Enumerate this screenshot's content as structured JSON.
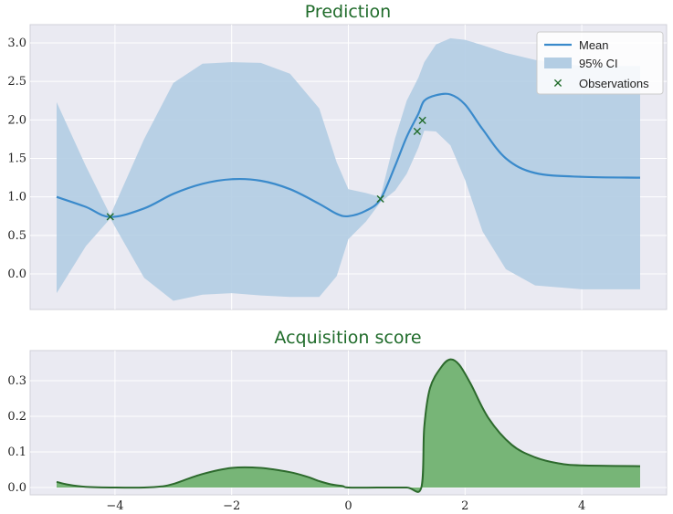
{
  "colors": {
    "mean_line": "#3a8acb",
    "ci_fill": "#b3cde3",
    "observation_marker": "#1f6b2a",
    "acquisition_fill": "#77b577",
    "acquisition_line": "#2d6a2d",
    "title": "#1f6b2a",
    "plot_background": "#eaeaf2"
  },
  "chart_data": [
    {
      "type": "line",
      "title": "Prediction",
      "xlim": [
        -5,
        5
      ],
      "ylim": [
        -0.45,
        3.2
      ],
      "grid": true,
      "legend": {
        "placement": "top-right",
        "entries": [
          "Mean",
          "95% CI",
          "Observations"
        ]
      },
      "x_ticks": [
        -4,
        -2,
        0,
        2,
        4
      ],
      "y_ticks": [
        0.0,
        0.5,
        1.0,
        1.5,
        2.0,
        2.5,
        3.0
      ],
      "y_tick_labels": [
        "0.0",
        "0.5",
        "1.0",
        "1.5",
        "2.0",
        "2.5",
        "3.0"
      ],
      "series": [
        {
          "name": "Mean",
          "x": [
            -5,
            -4.5,
            -4.08,
            -3.5,
            -3,
            -2.5,
            -2,
            -1.5,
            -1,
            -0.5,
            -0.2,
            0,
            0.3,
            0.55,
            0.8,
            1.0,
            1.2,
            1.3,
            1.5,
            1.75,
            2.0,
            2.3,
            2.7,
            3.2,
            4,
            5
          ],
          "values": [
            1.0,
            0.87,
            0.74,
            0.85,
            1.04,
            1.17,
            1.23,
            1.21,
            1.1,
            0.91,
            0.78,
            0.75,
            0.82,
            0.97,
            1.4,
            1.78,
            2.08,
            2.25,
            2.32,
            2.33,
            2.2,
            1.88,
            1.5,
            1.31,
            1.26,
            1.25
          ]
        },
        {
          "name": "95% CI",
          "x": [
            -5,
            -4.5,
            -4.08,
            -3.5,
            -3,
            -2.5,
            -2,
            -1.5,
            -1,
            -0.5,
            -0.2,
            0,
            0.3,
            0.55,
            0.8,
            1.0,
            1.2,
            1.3,
            1.5,
            1.75,
            2.0,
            2.3,
            2.7,
            3.2,
            4,
            5
          ],
          "upper": [
            2.23,
            1.4,
            0.76,
            1.75,
            2.48,
            2.73,
            2.75,
            2.74,
            2.6,
            2.15,
            1.45,
            1.1,
            1.05,
            1.0,
            1.76,
            2.25,
            2.55,
            2.75,
            2.98,
            3.06,
            3.04,
            2.97,
            2.87,
            2.78,
            2.7,
            2.7
          ],
          "lower": [
            -0.25,
            0.36,
            0.72,
            -0.05,
            -0.35,
            -0.27,
            -0.25,
            -0.28,
            -0.3,
            -0.3,
            -0.03,
            0.45,
            0.68,
            0.93,
            1.08,
            1.3,
            1.64,
            1.86,
            1.85,
            1.67,
            1.22,
            0.55,
            0.06,
            -0.15,
            -0.2,
            -0.2
          ]
        },
        {
          "name": "Observations",
          "x": [
            -4.08,
            0.55,
            1.18,
            1.27
          ],
          "values": [
            0.74,
            0.97,
            1.85,
            1.99
          ]
        }
      ]
    },
    {
      "type": "area",
      "title": "Acquisition score",
      "xlim": [
        -5,
        5
      ],
      "ylim": [
        -0.012,
        0.38
      ],
      "grid": true,
      "x_ticks": [
        -4,
        -2,
        0,
        2,
        4
      ],
      "x_tick_labels": [
        "−4",
        "−2",
        "0",
        "2",
        "4"
      ],
      "y_ticks": [
        0.0,
        0.1,
        0.2,
        0.3
      ],
      "y_tick_labels": [
        "0.0",
        "0.1",
        "0.2",
        "0.3"
      ],
      "x": [
        -5,
        -4.8,
        -4.5,
        -4,
        -3.5,
        -3.2,
        -3,
        -2.5,
        -2,
        -1.5,
        -1,
        -0.7,
        -0.5,
        -0.3,
        -0.1,
        0,
        0.5,
        1.0,
        1.25,
        1.3,
        1.4,
        1.6,
        1.75,
        1.9,
        2.1,
        2.4,
        2.8,
        3.2,
        3.6,
        4,
        5
      ],
      "values": [
        0.016,
        0.008,
        0.002,
        0.0,
        0.0,
        0.003,
        0.01,
        0.038,
        0.055,
        0.055,
        0.043,
        0.03,
        0.018,
        0.009,
        0.004,
        0.0,
        0.0,
        0.0,
        0.0,
        0.17,
        0.28,
        0.34,
        0.36,
        0.345,
        0.29,
        0.195,
        0.12,
        0.085,
        0.068,
        0.062,
        0.06
      ]
    }
  ]
}
